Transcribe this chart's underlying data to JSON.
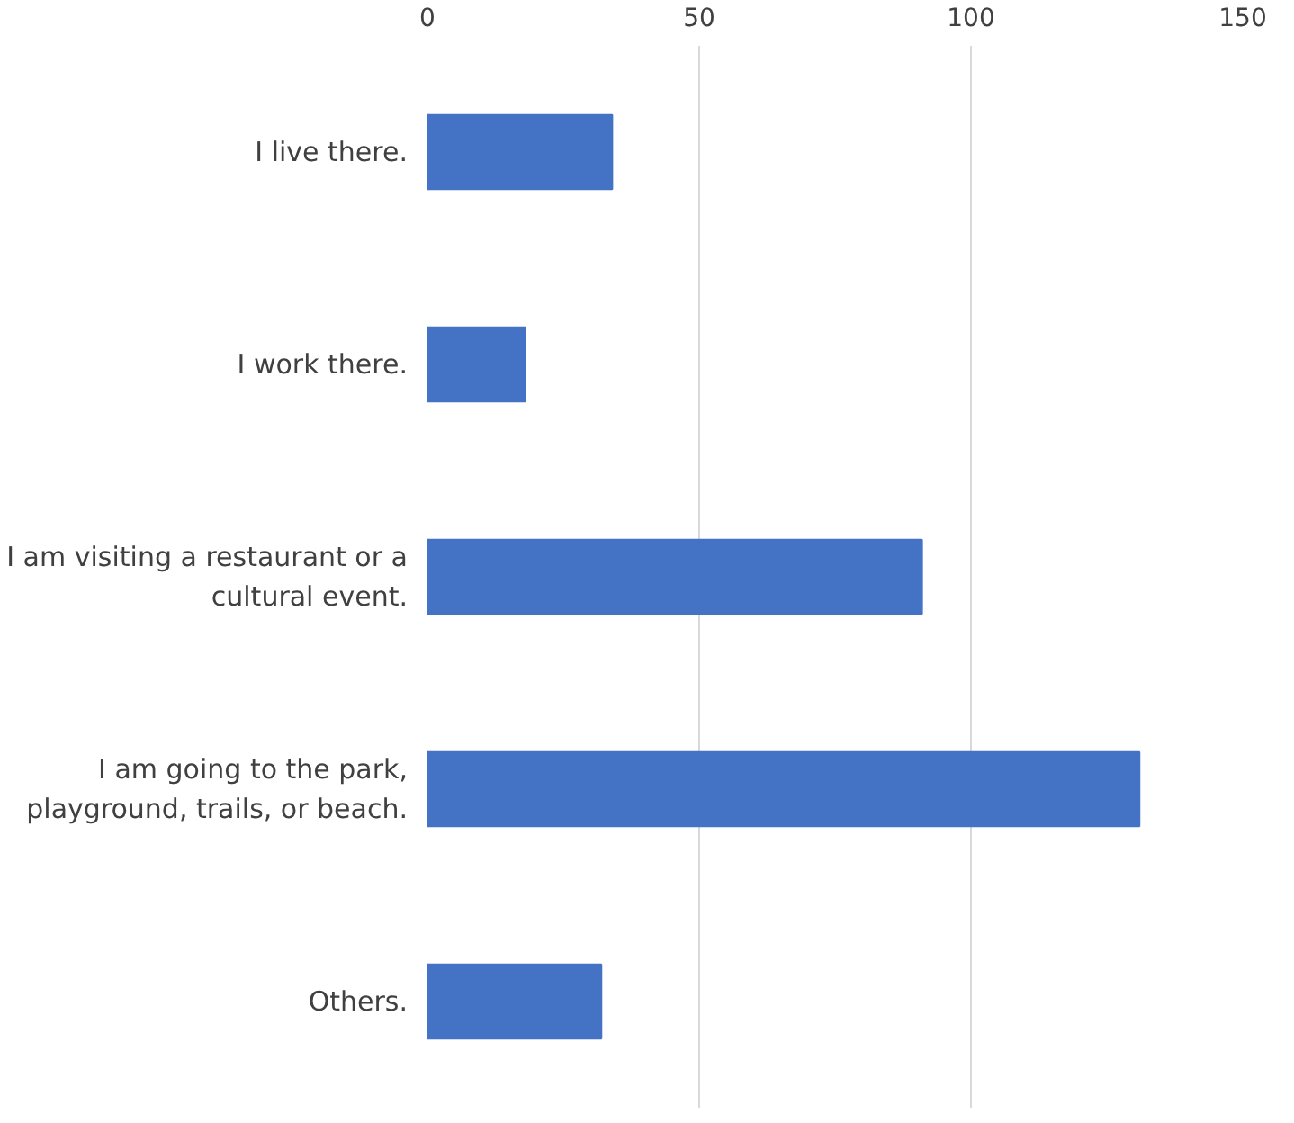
{
  "chart_data": {
    "type": "bar",
    "orientation": "horizontal",
    "categories": [
      "I live there.",
      "I work there.",
      "I am visiting a restaurant or a cultural event.",
      "I am going to the park, playground, trails, or beach.",
      "Others."
    ],
    "values": [
      34,
      18,
      91,
      131,
      32
    ],
    "color": "#4472c4",
    "xlim": [
      0,
      150
    ],
    "xticks": [
      0,
      50,
      100,
      150
    ],
    "grid": "x"
  }
}
